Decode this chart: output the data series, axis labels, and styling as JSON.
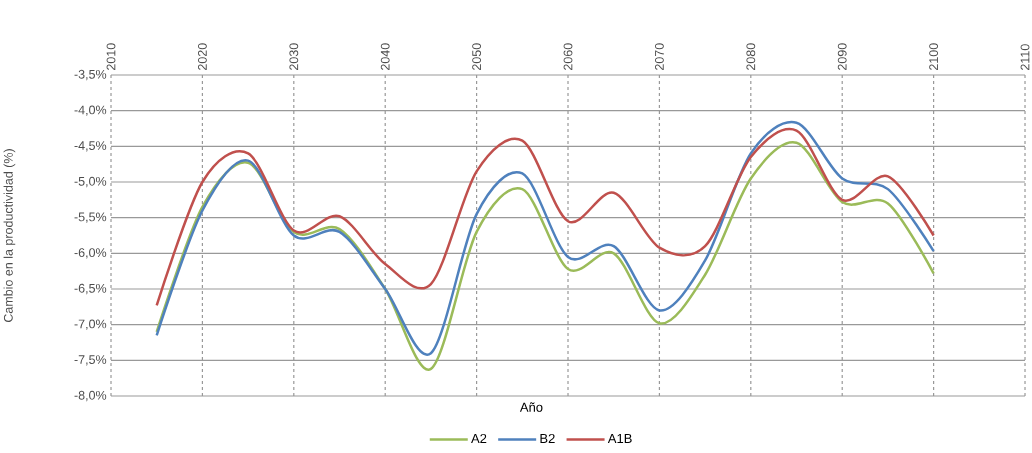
{
  "chart_data": {
    "type": "line",
    "xlabel": "Año",
    "ylabel": "Cambio en la productividad (%)",
    "x": [
      2015,
      2020,
      2025,
      2030,
      2035,
      2040,
      2045,
      2050,
      2055,
      2060,
      2065,
      2070,
      2075,
      2080,
      2085,
      2090,
      2095,
      2100
    ],
    "series": [
      {
        "name": "A2",
        "color": "#9bbb59",
        "values": [
          -7.1,
          -5.35,
          -4.73,
          -5.7,
          -5.66,
          -6.5,
          -7.62,
          -5.7,
          -5.1,
          -6.22,
          -6.0,
          -6.98,
          -6.3,
          -4.95,
          -4.45,
          -5.28,
          -5.3,
          -6.28
        ]
      },
      {
        "name": "B2",
        "color": "#4f81bd",
        "values": [
          -7.15,
          -5.4,
          -4.7,
          -5.75,
          -5.7,
          -6.5,
          -7.4,
          -5.45,
          -4.88,
          -6.05,
          -5.9,
          -6.8,
          -6.1,
          -4.6,
          -4.17,
          -4.95,
          -5.1,
          -5.97
        ]
      },
      {
        "name": "A1B",
        "color": "#c0504d",
        "values": [
          -6.73,
          -5.0,
          -4.6,
          -5.68,
          -5.48,
          -6.15,
          -6.43,
          -4.85,
          -4.42,
          -5.55,
          -5.15,
          -5.92,
          -5.9,
          -4.65,
          -4.28,
          -5.25,
          -4.92,
          -5.75
        ]
      }
    ],
    "xlim": [
      2010,
      2110
    ],
    "xticks": [
      2010,
      2020,
      2030,
      2040,
      2050,
      2060,
      2070,
      2080,
      2090,
      2100,
      2110
    ],
    "ylim": [
      -8.0,
      -3.5
    ],
    "yticks": [
      {
        "value": -3.5,
        "label": "-3,5%"
      },
      {
        "value": -4.0,
        "label": "-4,0%"
      },
      {
        "value": -4.5,
        "label": "-4,5%"
      },
      {
        "value": -5.0,
        "label": "-5,0%"
      },
      {
        "value": -5.5,
        "label": "-5,5%"
      },
      {
        "value": -6.0,
        "label": "-6,0%"
      },
      {
        "value": -6.5,
        "label": "-6,5%"
      },
      {
        "value": -7.0,
        "label": "-7,0%"
      },
      {
        "value": -7.5,
        "label": "-7,5%"
      },
      {
        "value": -8.0,
        "label": "-8,0%"
      }
    ],
    "grid": true,
    "legend": "bottom"
  }
}
